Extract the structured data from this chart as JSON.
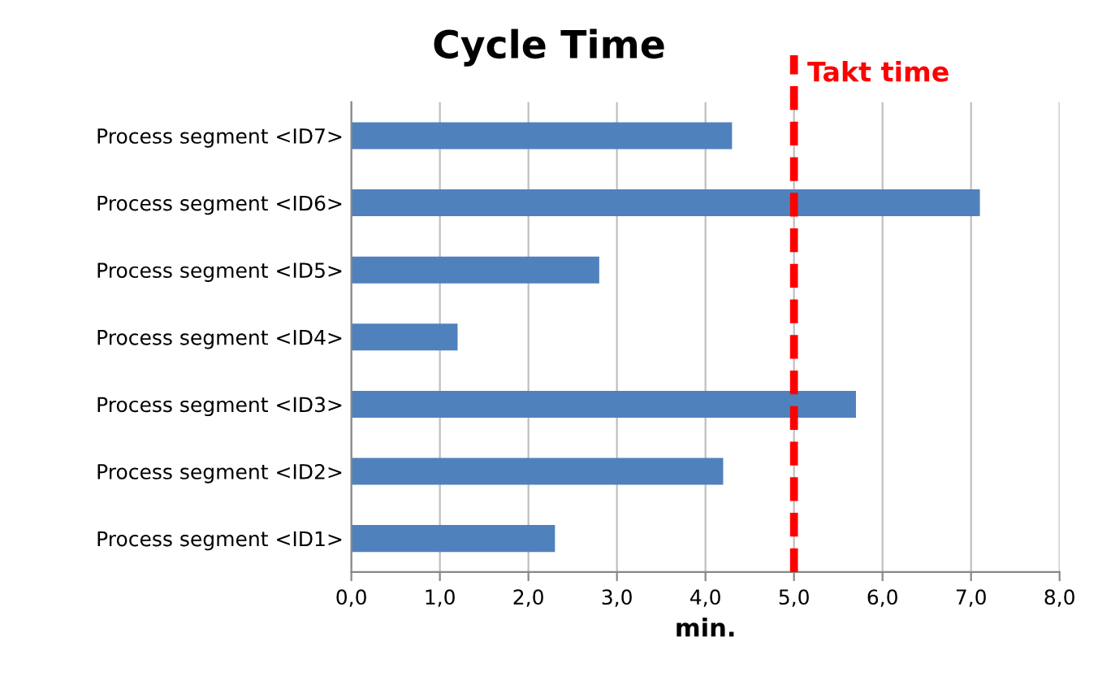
{
  "chart_data": {
    "type": "bar",
    "orientation": "horizontal",
    "title": "Cycle Time",
    "xlabel": "min.",
    "categories": [
      "Process segment <ID7>",
      "Process segment <ID6>",
      "Process segment <ID5>",
      "Process segment <ID4>",
      "Process segment <ID3>",
      "Process segment <ID2>",
      "Process segment <ID1>"
    ],
    "values": [
      4.3,
      7.1,
      2.8,
      1.2,
      5.7,
      4.2,
      2.3
    ],
    "color": "#4f81bd",
    "xlim": [
      0,
      8
    ],
    "xticks": [
      {
        "value": 0,
        "label": "0,0"
      },
      {
        "value": 1,
        "label": "1,0"
      },
      {
        "value": 2,
        "label": "2,0"
      },
      {
        "value": 3,
        "label": "3,0"
      },
      {
        "value": 4,
        "label": "4,0"
      },
      {
        "value": 5,
        "label": "5,0"
      },
      {
        "value": 6,
        "label": "6,0"
      },
      {
        "value": 7,
        "label": "7,0"
      },
      {
        "value": 8,
        "label": "8,0"
      }
    ],
    "grid": "x",
    "ref_lines": [
      {
        "axis": "x",
        "value": 5,
        "label": "Takt time",
        "color": "#ff0000",
        "line_style": "dashed"
      }
    ]
  }
}
